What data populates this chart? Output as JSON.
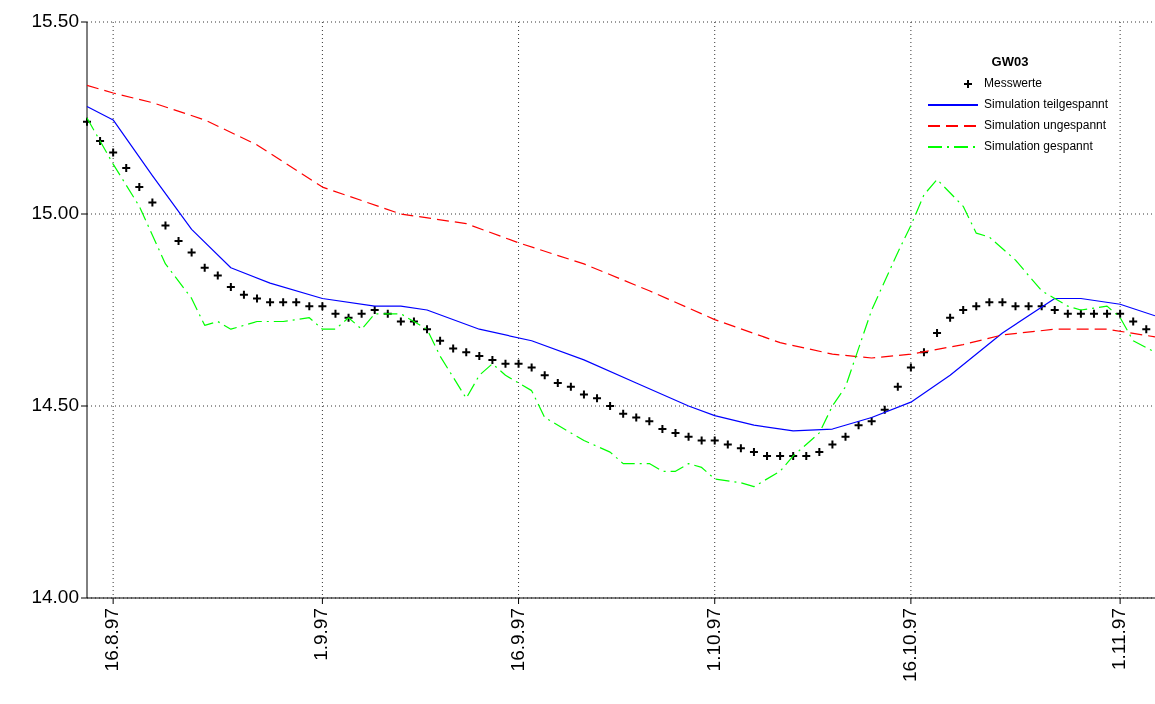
{
  "chart_data": {
    "type": "line",
    "xlim": [
      "1997-08-14",
      "1997-11-03T16:00"
    ],
    "ylim": [
      14,
      15.5
    ],
    "xticks": [
      {
        "value": "1997-08-16",
        "label": "16.8.97"
      },
      {
        "value": "1997-09-01",
        "label": "1.9.97"
      },
      {
        "value": "1997-09-16",
        "label": "16.9.97"
      },
      {
        "value": "1997-10-01",
        "label": "1.10.97"
      },
      {
        "value": "1997-10-16",
        "label": "16.10.97"
      },
      {
        "value": "1997-11-01",
        "label": "1.11.97"
      }
    ],
    "yticks": [
      {
        "value": 14,
        "label": "14.00"
      },
      {
        "value": 14.5,
        "label": "14.50"
      },
      {
        "value": 15,
        "label": "15.00"
      },
      {
        "value": 15.5,
        "label": "15.50"
      }
    ],
    "grid": true,
    "legend": "top right",
    "legend_title": "GW03",
    "series": [
      {
        "name": "Messwerte",
        "type": "scatter",
        "marker": "cross",
        "color": "#000000",
        "x": [
          "1997-08-14",
          "1997-08-15",
          "1997-08-16",
          "1997-08-17",
          "1997-08-18",
          "1997-08-19",
          "1997-08-20",
          "1997-08-21",
          "1997-08-22",
          "1997-08-23",
          "1997-08-24",
          "1997-08-25",
          "1997-08-26",
          "1997-08-27",
          "1997-08-28",
          "1997-08-29",
          "1997-08-30",
          "1997-08-31",
          "1997-09-01",
          "1997-09-02",
          "1997-09-03",
          "1997-09-04",
          "1997-09-05",
          "1997-09-06",
          "1997-09-07",
          "1997-09-08",
          "1997-09-09",
          "1997-09-10",
          "1997-09-11",
          "1997-09-12",
          "1997-09-13",
          "1997-09-14",
          "1997-09-15",
          "1997-09-16",
          "1997-09-17",
          "1997-09-18",
          "1997-09-19",
          "1997-09-20",
          "1997-09-21",
          "1997-09-22",
          "1997-09-23",
          "1997-09-24",
          "1997-09-25",
          "1997-09-26",
          "1997-09-27",
          "1997-09-28",
          "1997-09-29",
          "1997-09-30",
          "1997-10-01",
          "1997-10-02",
          "1997-10-03",
          "1997-10-04",
          "1997-10-05",
          "1997-10-06",
          "1997-10-07",
          "1997-10-08",
          "1997-10-09",
          "1997-10-10",
          "1997-10-11",
          "1997-10-12",
          "1997-10-13",
          "1997-10-14",
          "1997-10-15",
          "1997-10-16",
          "1997-10-17",
          "1997-10-18",
          "1997-10-19",
          "1997-10-20",
          "1997-10-21",
          "1997-10-22",
          "1997-10-23",
          "1997-10-24",
          "1997-10-25",
          "1997-10-26",
          "1997-10-27",
          "1997-10-28",
          "1997-10-29",
          "1997-10-30",
          "1997-10-31",
          "1997-11-01",
          "1997-11-02",
          "1997-11-03"
        ],
        "values": [
          15.24,
          15.19,
          15.16,
          15.12,
          15.07,
          15.03,
          14.97,
          14.93,
          14.9,
          14.86,
          14.84,
          14.81,
          14.79,
          14.78,
          14.77,
          14.77,
          14.77,
          14.76,
          14.76,
          14.74,
          14.73,
          14.74,
          14.75,
          14.74,
          14.72,
          14.72,
          14.7,
          14.67,
          14.65,
          14.64,
          14.63,
          14.62,
          14.61,
          14.61,
          14.6,
          14.58,
          14.56,
          14.55,
          14.53,
          14.52,
          14.5,
          14.48,
          14.47,
          14.46,
          14.44,
          14.43,
          14.42,
          14.41,
          14.41,
          14.4,
          14.39,
          14.38,
          14.37,
          14.37,
          14.37,
          14.37,
          14.38,
          14.4,
          14.42,
          14.45,
          14.46,
          14.49,
          14.55,
          14.6,
          14.64,
          14.69,
          14.73,
          14.75,
          14.76,
          14.77,
          14.77,
          14.76,
          14.76,
          14.76,
          14.75,
          14.74,
          14.74,
          14.74,
          14.74,
          14.74,
          14.72,
          14.7
        ]
      },
      {
        "name": "Simulation teilgespannt",
        "type": "line",
        "line_style": "solid",
        "color": "#0000ff",
        "x": [
          "1997-08-14",
          "1997-08-16",
          "1997-08-19",
          "1997-08-22",
          "1997-08-25",
          "1997-08-28",
          "1997-09-01",
          "1997-09-05",
          "1997-09-07",
          "1997-09-09",
          "1997-09-13",
          "1997-09-17",
          "1997-09-21",
          "1997-09-25",
          "1997-09-29",
          "1997-10-01",
          "1997-10-04",
          "1997-10-07",
          "1997-10-10",
          "1997-10-13",
          "1997-10-16",
          "1997-10-19",
          "1997-10-23",
          "1997-10-27",
          "1997-10-29",
          "1997-11-01",
          "1997-11-03T16:00"
        ],
        "values": [
          15.28,
          15.245,
          15.1,
          14.96,
          14.86,
          14.82,
          14.78,
          14.76,
          14.76,
          14.75,
          14.7,
          14.67,
          14.62,
          14.56,
          14.5,
          14.475,
          14.45,
          14.435,
          14.44,
          14.47,
          14.51,
          14.58,
          14.69,
          14.78,
          14.78,
          14.765,
          14.735
        ]
      },
      {
        "name": "Simulation ungespannt",
        "type": "line",
        "line_style": "dashed",
        "color": "#ff0000",
        "x": [
          "1997-08-14",
          "1997-08-16",
          "1997-08-19",
          "1997-08-23",
          "1997-08-27",
          "1997-09-01",
          "1997-09-07",
          "1997-09-12",
          "1997-09-16",
          "1997-09-21",
          "1997-09-26",
          "1997-10-01",
          "1997-10-06",
          "1997-10-10",
          "1997-10-13",
          "1997-10-16",
          "1997-10-20",
          "1997-10-23",
          "1997-10-27",
          "1997-10-31",
          "1997-11-03T16:00"
        ],
        "values": [
          15.335,
          15.315,
          15.29,
          15.245,
          15.18,
          15.07,
          15.0,
          14.975,
          14.925,
          14.87,
          14.8,
          14.725,
          14.665,
          14.635,
          14.625,
          14.635,
          14.66,
          14.685,
          14.7,
          14.7,
          14.68
        ]
      },
      {
        "name": "Simulation gespannt",
        "type": "line",
        "line_style": "dashdot",
        "color": "#00ff00",
        "x": [
          "1997-08-14",
          "1997-08-15",
          "1997-08-16",
          "1997-08-18",
          "1997-08-20",
          "1997-08-22",
          "1997-08-23",
          "1997-08-24",
          "1997-08-25",
          "1997-08-27",
          "1997-08-29",
          "1997-08-31",
          "1997-09-01",
          "1997-09-02",
          "1997-09-03",
          "1997-09-04",
          "1997-09-05",
          "1997-09-07",
          "1997-09-09",
          "1997-09-10",
          "1997-09-12",
          "1997-09-13",
          "1997-09-14",
          "1997-09-15",
          "1997-09-17",
          "1997-09-18",
          "1997-09-21",
          "1997-09-23",
          "1997-09-24",
          "1997-09-26",
          "1997-09-27",
          "1997-09-28",
          "1997-09-29",
          "1997-09-30",
          "1997-10-01",
          "1997-10-03",
          "1997-10-04",
          "1997-10-06",
          "1997-10-07",
          "1997-10-09",
          "1997-10-10",
          "1997-10-11",
          "1997-10-13",
          "1997-10-15",
          "1997-10-16",
          "1997-10-17",
          "1997-10-18",
          "1997-10-20",
          "1997-10-21",
          "1997-10-22",
          "1997-10-24",
          "1997-10-26",
          "1997-10-28",
          "1997-10-29",
          "1997-10-31",
          "1997-11-01",
          "1997-11-02",
          "1997-11-03T16:00"
        ],
        "values": [
          15.25,
          15.19,
          15.13,
          15.02,
          14.87,
          14.78,
          14.71,
          14.72,
          14.7,
          14.72,
          14.72,
          14.73,
          14.7,
          14.7,
          14.73,
          14.7,
          14.74,
          14.74,
          14.7,
          14.63,
          14.52,
          14.58,
          14.61,
          14.58,
          14.54,
          14.47,
          14.41,
          14.38,
          14.35,
          14.35,
          14.33,
          14.33,
          14.35,
          14.34,
          14.31,
          14.3,
          14.29,
          14.33,
          14.37,
          14.43,
          14.5,
          14.55,
          14.75,
          14.9,
          14.97,
          15.05,
          15.09,
          15.02,
          14.95,
          14.94,
          14.88,
          14.8,
          14.76,
          14.75,
          14.76,
          14.73,
          14.67,
          14.64
        ]
      }
    ]
  }
}
